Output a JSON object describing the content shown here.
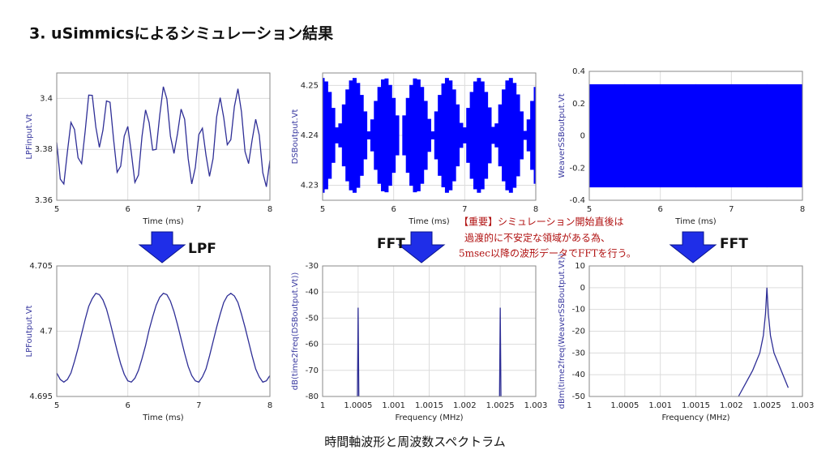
{
  "slide": {
    "title": "3. uSimmicsによるシミュレーション結果",
    "arrow_labels": [
      "LPF",
      "FFT",
      "FFT"
    ],
    "note": [
      "【重要】シミュレーション開始直後は",
      "過渡的に不安定な領域がある為、",
      "5msec以降の波形データでFFTを行う。"
    ],
    "caption": "時間軸波形と周波数スペクトラム"
  },
  "chart_data": [
    {
      "type": "line",
      "xlabel": "Time (ms)",
      "ylabel": "LPFinput.Vt",
      "color": "#2e2e96",
      "grid": true,
      "xlim": [
        5,
        8
      ],
      "xticks": [
        5,
        6,
        7,
        8
      ],
      "ylim": [
        3.36,
        3.41
      ],
      "yticks": [
        3.36,
        3.38,
        3.4
      ],
      "x": [
        5,
        5.05,
        5.1,
        5.15,
        5.2,
        5.25,
        5.3,
        5.35,
        5.4,
        5.45,
        5.5,
        5.55,
        5.6,
        5.65,
        5.7,
        5.75,
        5.8,
        5.85,
        5.9,
        5.95,
        6,
        6.05,
        6.1,
        6.15,
        6.2,
        6.25,
        6.3,
        6.35,
        6.4,
        6.45,
        6.5,
        6.55,
        6.6,
        6.65,
        6.7,
        6.75,
        6.8,
        6.85,
        6.9,
        6.95,
        7,
        7.05,
        7.1,
        7.15,
        7.2,
        7.25,
        7.3,
        7.35,
        7.4,
        7.45,
        7.5,
        7.55,
        7.6,
        7.65,
        7.7,
        7.75,
        7.8,
        7.85,
        7.9,
        7.95,
        8
      ],
      "values": [
        3.3827,
        3.3683,
        3.3664,
        3.379,
        3.3906,
        3.3878,
        3.3767,
        3.3744,
        3.3871,
        3.4013,
        3.4012,
        3.3888,
        3.3808,
        3.3875,
        3.399,
        3.3985,
        3.3839,
        3.371,
        3.3734,
        3.3852,
        3.389,
        3.3786,
        3.367,
        3.3699,
        3.3851,
        3.3955,
        3.3905,
        3.3797,
        3.38,
        3.3935,
        3.4046,
        3.3998,
        3.3852,
        3.3784,
        3.3862,
        3.3958,
        3.3918,
        3.3763,
        3.3664,
        3.3728,
        3.3858,
        3.3883,
        3.3778,
        3.3694,
        3.3764,
        3.3927,
        3.4003,
        3.3925,
        3.3818,
        3.3838,
        3.3968,
        3.4038,
        3.3947,
        3.3791,
        3.3744,
        3.3837,
        3.3918,
        3.3856,
        3.3708,
        3.3653,
        3.3757
      ]
    },
    {
      "type": "band",
      "xlabel": "Time (ms)",
      "ylabel": "DSBoutput.Vt",
      "color": "#0000ff",
      "grid": true,
      "xlim": [
        5,
        8
      ],
      "xticks": [
        5,
        6,
        7,
        8
      ],
      "ylim": [
        4.227,
        4.2525
      ],
      "yticks": [
        4.23,
        4.24,
        4.25
      ],
      "x": [
        5,
        5.05,
        5.1,
        5.15,
        5.2,
        5.25,
        5.3,
        5.35,
        5.4,
        5.45,
        5.5,
        5.55,
        5.6,
        5.65,
        5.7,
        5.75,
        5.8,
        5.85,
        5.9,
        5.95,
        6,
        6.05,
        6.1,
        6.15,
        6.2,
        6.25,
        6.3,
        6.35,
        6.4,
        6.45,
        6.5,
        6.55,
        6.6,
        6.65,
        6.7,
        6.75,
        6.8,
        6.85,
        6.9,
        6.95,
        7,
        7.05,
        7.1,
        7.15,
        7.2,
        7.25,
        7.3,
        7.35,
        7.4,
        7.45,
        7.5,
        7.55,
        7.6,
        7.65,
        7.7,
        7.75,
        7.8,
        7.85,
        7.9,
        7.95,
        8
      ],
      "high": [
        4.2515,
        4.2508,
        4.2487,
        4.2455,
        4.2416,
        4.2424,
        4.2462,
        4.2492,
        4.251,
        4.2515,
        4.2505,
        4.2481,
        4.2448,
        4.2408,
        4.2432,
        4.2469,
        4.2497,
        4.2512,
        4.2514,
        4.2501,
        4.2475,
        4.244,
        4.24,
        4.244,
        4.2475,
        4.2501,
        4.2514,
        4.2512,
        4.2497,
        4.2469,
        4.2433,
        4.2408,
        4.2448,
        4.2481,
        4.2504,
        4.2515,
        4.251,
        4.2492,
        4.2462,
        4.2425,
        4.2416,
        4.2455,
        4.2487,
        4.2508,
        4.2515,
        4.2508,
        4.2487,
        4.2456,
        4.2417,
        4.2424,
        4.2462,
        4.2492,
        4.251,
        4.2515,
        4.2505,
        4.2482,
        4.2448,
        4.2409,
        4.2432,
        4.2469,
        4.2497
      ],
      "low": [
        4.2285,
        4.2292,
        4.2313,
        4.2345,
        4.2384,
        4.2376,
        4.2338,
        4.2308,
        4.229,
        4.2285,
        4.2295,
        4.2319,
        4.2352,
        4.2392,
        4.2368,
        4.2331,
        4.2303,
        4.2288,
        4.2286,
        4.2299,
        4.2325,
        4.236,
        4.24,
        4.236,
        4.2325,
        4.2299,
        4.2286,
        4.2288,
        4.2303,
        4.2331,
        4.2367,
        4.2392,
        4.2352,
        4.2319,
        4.2296,
        4.2285,
        4.229,
        4.2308,
        4.2338,
        4.2375,
        4.2384,
        4.2345,
        4.2313,
        4.2292,
        4.2285,
        4.2292,
        4.2313,
        4.2344,
        4.2383,
        4.2376,
        4.2338,
        4.2308,
        4.229,
        4.2285,
        4.2295,
        4.2318,
        4.2352,
        4.2391,
        4.2368,
        4.2331,
        4.2303
      ]
    },
    {
      "type": "band",
      "xlabel": "Time (ms)",
      "ylabel": "WeaverSSBoutput.Vt",
      "color": "#0000ff",
      "grid": true,
      "xlim": [
        5,
        8
      ],
      "xticks": [
        5,
        6,
        7,
        8
      ],
      "ylim": [
        -0.4,
        0.4
      ],
      "yticks": [
        -0.4,
        -0.2,
        0,
        0.2,
        0.4
      ],
      "x": [
        5,
        6,
        7,
        8
      ],
      "high": [
        0.32,
        0.32,
        0.32,
        0.32
      ],
      "low": [
        -0.32,
        -0.32,
        -0.32,
        -0.32
      ]
    },
    {
      "type": "line",
      "xlabel": "Time (ms)",
      "ylabel": "LPFoutput.Vt",
      "color": "#2e2e96",
      "grid": true,
      "xlim": [
        5,
        8
      ],
      "xticks": [
        5,
        6,
        7,
        8
      ],
      "ylim": [
        4.695,
        4.705
      ],
      "yticks": [
        4.695,
        4.7,
        4.705
      ],
      "x": [
        5,
        5.05,
        5.1,
        5.15,
        5.2,
        5.25,
        5.3,
        5.35,
        5.4,
        5.45,
        5.5,
        5.55,
        5.6,
        5.65,
        5.7,
        5.75,
        5.8,
        5.85,
        5.9,
        5.95,
        6,
        6.05,
        6.1,
        6.15,
        6.2,
        6.25,
        6.3,
        6.35,
        6.4,
        6.45,
        6.5,
        6.55,
        6.6,
        6.65,
        6.7,
        6.75,
        6.8,
        6.85,
        6.9,
        6.95,
        7,
        7.05,
        7.1,
        7.15,
        7.2,
        7.25,
        7.3,
        7.35,
        7.4,
        7.45,
        7.5,
        7.55,
        7.6,
        7.65,
        7.7,
        7.75,
        7.8,
        7.85,
        7.9,
        7.95,
        8
      ],
      "values": [
        4.6968,
        4.6963,
        4.6961,
        4.6963,
        4.6968,
        4.6977,
        4.6987,
        4.6998,
        4.7009,
        4.7019,
        4.7025,
        4.7029,
        4.7028,
        4.7024,
        4.7017,
        4.7007,
        4.6996,
        4.6985,
        4.6975,
        4.6967,
        4.6962,
        4.6961,
        4.6964,
        4.697,
        4.6979,
        4.6989,
        4.7001,
        4.7011,
        4.702,
        4.7026,
        4.7029,
        4.7028,
        4.7023,
        4.7015,
        4.7005,
        4.6994,
        4.6983,
        4.6973,
        4.6966,
        4.6962,
        4.6961,
        4.6965,
        4.6971,
        4.6981,
        4.6992,
        4.7003,
        4.7013,
        4.7022,
        4.7027,
        4.7029,
        4.7027,
        4.7022,
        4.7013,
        4.7003,
        4.6992,
        4.6981,
        4.6971,
        4.6965,
        4.6961,
        4.6962,
        4.6966
      ]
    },
    {
      "type": "line",
      "xlabel": "Frequency (MHz)",
      "ylabel": "dB(time2freq(DSBoutput.Vt))",
      "color": "#2e2e96",
      "grid": true,
      "xlim": [
        1,
        1.003
      ],
      "xticks": [
        1,
        1.0005,
        1.001,
        1.0015,
        1.002,
        1.0025,
        1.003
      ],
      "ylim": [
        -80,
        -30
      ],
      "yticks": [
        -80,
        -70,
        -60,
        -50,
        -40,
        -30
      ],
      "x": [
        1.00049,
        1.0005,
        1.00051,
        1.0015,
        1.00249,
        1.0025,
        1.00251
      ],
      "values": [
        -80,
        -46,
        -80,
        null,
        -80,
        -46,
        -80
      ]
    },
    {
      "type": "line",
      "xlabel": "Frequency (MHz)",
      "ylabel": "dBm(time2freq(WeaverSSBoutput.Vt))",
      "color": "#2e2e96",
      "grid": true,
      "xlim": [
        1,
        1.003
      ],
      "xticks": [
        1,
        1.0005,
        1.001,
        1.0015,
        1.002,
        1.0025,
        1.003
      ],
      "ylim": [
        -50,
        10
      ],
      "yticks": [
        -50,
        -40,
        -30,
        -20,
        -10,
        0,
        10
      ],
      "x": [
        1.0021,
        1.0022,
        1.0023,
        1.0024,
        1.00245,
        1.00248,
        1.0025,
        1.00252,
        1.00255,
        1.0026,
        1.0027,
        1.0028
      ],
      "values": [
        -50,
        -44,
        -38,
        -30,
        -22,
        -12,
        0,
        -12,
        -22,
        -30,
        -38,
        -46
      ]
    }
  ]
}
